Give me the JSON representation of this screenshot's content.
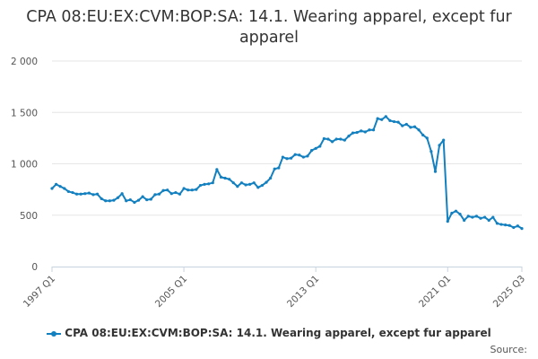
{
  "chart_data": {
    "type": "line",
    "title": "CPA 08:EU:EX:CVM:BOP:SA: 14.1. Wearing apparel, except fur apparel",
    "xlabel": "",
    "ylabel": "",
    "ylim": [
      0,
      2000
    ],
    "y_ticks": [
      0,
      500,
      1000,
      1500,
      2000
    ],
    "y_tick_labels": [
      "0",
      "500",
      "1 000",
      "1 500",
      "2 000"
    ],
    "x_tick_labels": [
      "1997 Q1",
      "2005 Q1",
      "2013 Q1",
      "2021 Q1",
      "2025 Q3"
    ],
    "x_tick_indices": [
      0,
      32,
      64,
      96,
      114
    ],
    "grid": true,
    "legend_position": "bottom",
    "series": [
      {
        "name": "CPA 08:EU:EX:CVM:BOP:SA: 14.1. Wearing apparel, except fur apparel",
        "color": "#1380c0",
        "x_start": "1997 Q1",
        "x_end": "2025 Q3",
        "frequency": "quarterly",
        "values": [
          760,
          800,
          780,
          760,
          730,
          720,
          705,
          705,
          710,
          715,
          700,
          705,
          660,
          640,
          640,
          645,
          670,
          710,
          640,
          650,
          625,
          645,
          680,
          650,
          655,
          700,
          705,
          740,
          745,
          710,
          720,
          705,
          760,
          745,
          745,
          750,
          790,
          800,
          805,
          815,
          945,
          870,
          860,
          850,
          815,
          780,
          815,
          795,
          800,
          815,
          770,
          790,
          820,
          860,
          950,
          960,
          1065,
          1050,
          1055,
          1090,
          1085,
          1065,
          1075,
          1130,
          1150,
          1170,
          1245,
          1240,
          1215,
          1240,
          1240,
          1230,
          1270,
          1300,
          1305,
          1320,
          1310,
          1330,
          1330,
          1440,
          1430,
          1460,
          1420,
          1410,
          1405,
          1370,
          1385,
          1355,
          1360,
          1330,
          1280,
          1250,
          1120,
          925,
          1180,
          1230,
          440,
          520,
          540,
          510,
          450,
          490,
          480,
          490,
          470,
          480,
          450,
          480,
          420,
          410,
          405,
          400,
          380,
          395,
          370
        ]
      }
    ]
  },
  "credits": "Source:"
}
